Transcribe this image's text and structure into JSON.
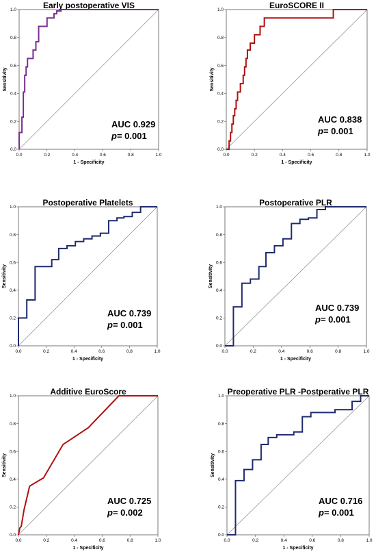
{
  "chart_data": [
    {
      "type": "line",
      "title": "Early postoperative VIS",
      "xlabel": "1 - Specificity",
      "ylabel": "Sensitivity",
      "xlim": [
        0,
        1
      ],
      "ylim": [
        0,
        1
      ],
      "xticks": [
        "0.0",
        "0.2",
        "0.4",
        "0.6",
        "0.8",
        "1.0"
      ],
      "yticks": [
        "0.0",
        "0.2",
        "0.4",
        "0.6",
        "0.8",
        "1.0"
      ],
      "auc_label": "AUC 0.929",
      "p_prefix": "p",
      "p_value": "= 0.001",
      "color": "#7b2c91",
      "reference_line": true,
      "x": [
        0,
        0,
        0.02,
        0.02,
        0.03,
        0.03,
        0.04,
        0.04,
        0.05,
        0.05,
        0.06,
        0.06,
        0.1,
        0.1,
        0.12,
        0.12,
        0.14,
        0.14,
        0.2,
        0.2,
        0.25,
        0.25,
        0.27,
        0.27,
        0.3,
        0.3,
        1.0
      ],
      "y": [
        0,
        0.12,
        0.12,
        0.23,
        0.23,
        0.41,
        0.41,
        0.53,
        0.53,
        0.59,
        0.59,
        0.65,
        0.65,
        0.71,
        0.71,
        0.77,
        0.77,
        0.88,
        0.88,
        0.94,
        0.94,
        0.97,
        0.97,
        0.99,
        0.99,
        1.0,
        1.0
      ]
    },
    {
      "type": "line",
      "title": "EuroSCORE II",
      "xlabel": "1 - Specificity",
      "ylabel": "Sensitivity",
      "xlim": [
        0,
        1
      ],
      "ylim": [
        0,
        1
      ],
      "xticks": [
        "0.0",
        "0.2",
        "0.4",
        "0.6",
        "0.8",
        "1.0"
      ],
      "yticks": [
        "0.0",
        "0.2",
        "0.4",
        "0.6",
        "0.8",
        "1.0"
      ],
      "auc_label": "AUC 0.838",
      "p_prefix": "p",
      "p_value": "= 0.001",
      "color": "#b01010",
      "reference_line": true,
      "x": [
        0,
        0.02,
        0.02,
        0.03,
        0.03,
        0.04,
        0.04,
        0.05,
        0.05,
        0.06,
        0.06,
        0.07,
        0.07,
        0.08,
        0.08,
        0.1,
        0.1,
        0.12,
        0.12,
        0.13,
        0.13,
        0.14,
        0.14,
        0.15,
        0.15,
        0.17,
        0.17,
        0.2,
        0.2,
        0.24,
        0.24,
        0.27,
        0.27,
        0.3,
        0.3,
        0.76,
        0.76,
        1.0
      ],
      "y": [
        0,
        0,
        0.06,
        0.06,
        0.12,
        0.12,
        0.18,
        0.18,
        0.24,
        0.24,
        0.29,
        0.29,
        0.35,
        0.35,
        0.41,
        0.41,
        0.47,
        0.47,
        0.53,
        0.53,
        0.59,
        0.59,
        0.65,
        0.65,
        0.71,
        0.71,
        0.76,
        0.76,
        0.82,
        0.82,
        0.88,
        0.88,
        0.94,
        0.94,
        0.94,
        0.94,
        1.0,
        1.0
      ]
    },
    {
      "type": "line",
      "title": "Postoperative Platelets",
      "xlabel": "1 - Specificity",
      "ylabel": "Sensitivity",
      "xlim": [
        0,
        1
      ],
      "ylim": [
        0,
        1
      ],
      "xticks": [
        "0.0",
        "0.2",
        "0.4",
        "0.6",
        "0.8",
        "1.0"
      ],
      "yticks": [
        "0.0",
        "0.2",
        "0.4",
        "0.6",
        "0.8",
        "1.0"
      ],
      "auc_label": "AUC 0.739",
      "p_prefix": "p",
      "p_value": "= 0.001",
      "color": "#1f2a6e",
      "reference_line": true,
      "x": [
        0,
        0,
        0.06,
        0.06,
        0.12,
        0.12,
        0.24,
        0.24,
        0.29,
        0.29,
        0.35,
        0.35,
        0.41,
        0.41,
        0.47,
        0.47,
        0.53,
        0.53,
        0.59,
        0.59,
        0.65,
        0.65,
        0.71,
        0.71,
        0.76,
        0.76,
        0.82,
        0.82,
        0.88,
        0.88,
        1.0
      ],
      "y": [
        0,
        0.2,
        0.2,
        0.33,
        0.33,
        0.57,
        0.57,
        0.62,
        0.62,
        0.7,
        0.7,
        0.72,
        0.72,
        0.75,
        0.75,
        0.77,
        0.77,
        0.79,
        0.79,
        0.81,
        0.81,
        0.9,
        0.9,
        0.92,
        0.92,
        0.93,
        0.93,
        0.96,
        0.96,
        1.0,
        1.0
      ]
    },
    {
      "type": "line",
      "title": "Postoperative PLR",
      "xlabel": "1 - Specificity",
      "ylabel": "Sensitivity",
      "xlim": [
        0,
        1
      ],
      "ylim": [
        0,
        1
      ],
      "xticks": [
        "0.0",
        "0.2",
        "0.4",
        "0.6",
        "0.8",
        "1.0"
      ],
      "yticks": [
        "0.0",
        "0.2",
        "0.4",
        "0.6",
        "0.8",
        "1.0"
      ],
      "auc_label": "AUC 0.739",
      "p_prefix": "p",
      "p_value": "= 0.001",
      "color": "#1f2a6e",
      "reference_line": true,
      "x": [
        0,
        0.06,
        0.06,
        0.12,
        0.12,
        0.18,
        0.18,
        0.24,
        0.24,
        0.29,
        0.29,
        0.35,
        0.35,
        0.41,
        0.41,
        0.47,
        0.47,
        0.53,
        0.53,
        0.59,
        0.59,
        0.65,
        0.65,
        0.71,
        0.71,
        1.0
      ],
      "y": [
        0,
        0,
        0.28,
        0.28,
        0.45,
        0.45,
        0.48,
        0.48,
        0.57,
        0.57,
        0.67,
        0.67,
        0.72,
        0.72,
        0.77,
        0.77,
        0.88,
        0.88,
        0.91,
        0.91,
        0.92,
        0.92,
        0.98,
        0.98,
        1.0,
        1.0
      ]
    },
    {
      "type": "line",
      "title": "Additive EuroScore",
      "xlabel": "1 - Specificity",
      "ylabel": "Sensitivity",
      "xlim": [
        0,
        1
      ],
      "ylim": [
        0,
        1
      ],
      "xticks": [
        "0.0",
        "0.2",
        "0.4",
        "0.6",
        "0.8",
        "1.0"
      ],
      "yticks": [
        "0.0",
        "0.2",
        "0.4",
        "0.6",
        "0.8",
        "1.0"
      ],
      "auc_label": "AUC 0.725",
      "p_prefix": "p",
      "p_value": "= 0.002",
      "color": "#b01010",
      "reference_line": true,
      "x": [
        0,
        0.01,
        0.02,
        0.04,
        0.08,
        0.18,
        0.32,
        0.5,
        0.72,
        1.0
      ],
      "y": [
        0,
        0.05,
        0.06,
        0.18,
        0.35,
        0.41,
        0.65,
        0.77,
        1.0,
        1.0
      ]
    },
    {
      "type": "line",
      "title": "Preoperative PLR -Postperative PLR",
      "xlabel": "1 - Specificity",
      "ylabel": "Sensitivity",
      "xlim": [
        0,
        1
      ],
      "ylim": [
        0,
        1
      ],
      "xticks": [
        "0.0",
        "0.2",
        "0.4",
        "0.6",
        "0.8",
        "1.0"
      ],
      "yticks": [
        "0.0",
        "0.2",
        "0.4",
        "0.6",
        "0.8",
        "1.0"
      ],
      "auc_label": "AUC 0.716",
      "p_prefix": "p",
      "p_value": "= 0.001",
      "color": "#1f2a6e",
      "reference_line": true,
      "x": [
        0,
        0.06,
        0.06,
        0.12,
        0.12,
        0.18,
        0.18,
        0.24,
        0.24,
        0.29,
        0.29,
        0.35,
        0.35,
        0.47,
        0.47,
        0.53,
        0.53,
        0.59,
        0.59,
        0.76,
        0.76,
        0.88,
        0.88,
        0.94,
        0.94,
        1.0
      ],
      "y": [
        0,
        0,
        0.39,
        0.39,
        0.47,
        0.47,
        0.54,
        0.54,
        0.65,
        0.65,
        0.7,
        0.7,
        0.72,
        0.72,
        0.74,
        0.74,
        0.85,
        0.85,
        0.88,
        0.88,
        0.9,
        0.9,
        0.96,
        0.96,
        1.0,
        1.0
      ]
    }
  ]
}
